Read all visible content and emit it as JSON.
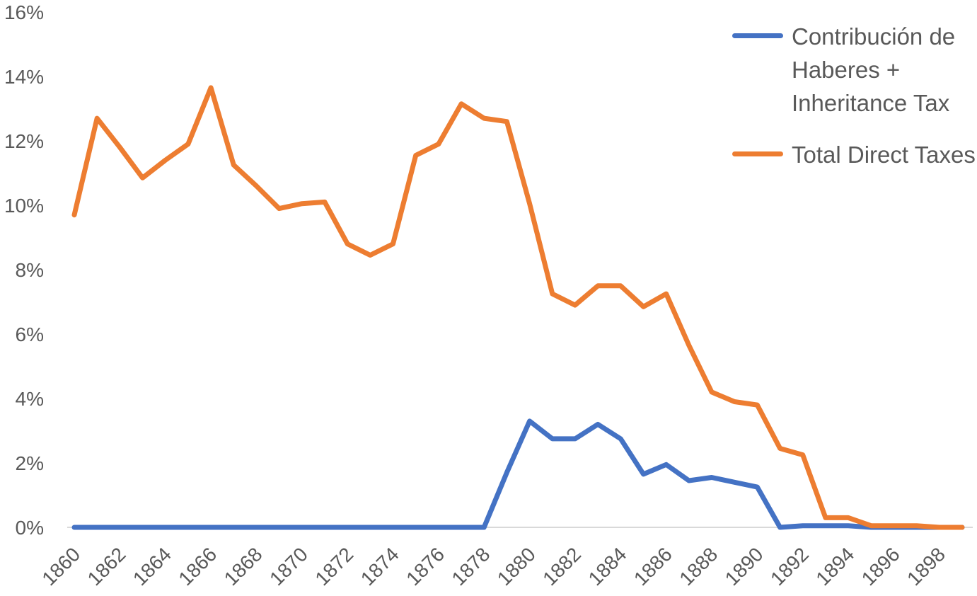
{
  "chart_data": {
    "type": "line",
    "title": "",
    "xlabel": "",
    "ylabel": "",
    "x": [
      1860,
      1861,
      1862,
      1863,
      1864,
      1865,
      1866,
      1867,
      1868,
      1869,
      1870,
      1871,
      1872,
      1873,
      1874,
      1875,
      1876,
      1877,
      1878,
      1879,
      1880,
      1881,
      1882,
      1883,
      1884,
      1885,
      1886,
      1887,
      1888,
      1889,
      1890,
      1891,
      1892,
      1893,
      1894,
      1895,
      1896,
      1897,
      1898,
      1899
    ],
    "x_tick_labels": [
      "1860",
      "1862",
      "1864",
      "1866",
      "1868",
      "1870",
      "1872",
      "1874",
      "1876",
      "1878",
      "1880",
      "1882",
      "1884",
      "1886",
      "1888",
      "1890",
      "1892",
      "1894",
      "1896",
      "1898"
    ],
    "y_tick_labels": [
      "0%",
      "2%",
      "4%",
      "6%",
      "8%",
      "10%",
      "12%",
      "14%",
      "16%"
    ],
    "ylim": [
      0,
      16
    ],
    "y_unit": "percent",
    "grid": "baseline only",
    "legend_position": "top-right",
    "series": [
      {
        "name": "Contribución de Haberes + Inheritance Tax",
        "color": "#4472C4",
        "values": [
          0,
          0,
          0,
          0,
          0,
          0,
          0,
          0,
          0,
          0,
          0,
          0,
          0,
          0,
          0,
          0,
          0,
          0,
          0,
          1.7,
          3.3,
          2.75,
          2.75,
          3.2,
          2.75,
          1.65,
          1.95,
          1.45,
          1.55,
          1.4,
          1.25,
          0,
          0.05,
          0.05,
          0.05,
          0,
          0,
          0,
          0,
          0
        ]
      },
      {
        "name": "Total Direct Taxes",
        "color": "#ED7D31",
        "values": [
          9.7,
          12.7,
          11.8,
          10.85,
          11.4,
          11.9,
          13.65,
          11.25,
          10.6,
          9.9,
          10.05,
          10.1,
          8.8,
          8.45,
          8.8,
          11.55,
          11.9,
          13.15,
          12.7,
          12.6,
          10.05,
          7.25,
          6.9,
          7.5,
          7.5,
          6.85,
          7.25,
          5.65,
          4.2,
          3.9,
          3.8,
          2.45,
          2.25,
          0.3,
          0.3,
          0.05,
          0.05,
          0.05,
          0,
          0
        ]
      }
    ]
  }
}
